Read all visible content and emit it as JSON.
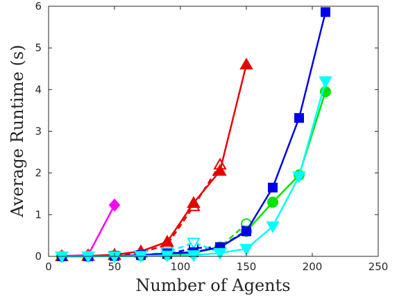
{
  "chart_data": {
    "type": "line",
    "xlabel": "Number of Agents",
    "ylabel": "Average Runtime (s)",
    "xlim": [
      0,
      250
    ],
    "ylim": [
      0,
      6
    ],
    "xticks": [
      "0",
      "50",
      "100",
      "150",
      "200",
      "250"
    ],
    "yticks": [
      "0",
      "1",
      "2",
      "3",
      "4",
      "5",
      "6"
    ],
    "xtick_values": [
      0,
      50,
      100,
      150,
      200,
      250
    ],
    "ytick_values": [
      0,
      1,
      2,
      3,
      4,
      5,
      6
    ],
    "grid": false,
    "legend": "none",
    "series": [
      {
        "color": "#ff00ff",
        "marker": "diamond",
        "filled": true,
        "dashed": false,
        "x": [
          10,
          30,
          50
        ],
        "y": [
          0.01,
          0.03,
          1.23
        ]
      },
      {
        "color": "#e60000",
        "marker": "triangle-up",
        "filled": false,
        "dashed": true,
        "x": [
          10,
          30,
          50,
          70,
          90,
          110,
          130
        ],
        "y": [
          0.0,
          0.01,
          0.03,
          0.09,
          0.28,
          1.2,
          2.2
        ]
      },
      {
        "color": "#e60000",
        "marker": "triangle-up",
        "filled": true,
        "dashed": false,
        "x": [
          10,
          30,
          50,
          70,
          90,
          110,
          130,
          150
        ],
        "y": [
          0.0,
          0.01,
          0.04,
          0.12,
          0.35,
          1.28,
          2.05,
          4.6
        ]
      },
      {
        "color": "#00e600",
        "marker": "circle",
        "filled": false,
        "dashed": true,
        "x": [
          10,
          30,
          50,
          70,
          90,
          110,
          130,
          150
        ],
        "y": [
          0.0,
          0.0,
          0.01,
          0.02,
          0.04,
          0.08,
          0.22,
          0.78
        ]
      },
      {
        "color": "#00e600",
        "marker": "circle",
        "filled": true,
        "dashed": false,
        "x": [
          10,
          30,
          50,
          70,
          90,
          110,
          130,
          150,
          170,
          190,
          210
        ],
        "y": [
          0.0,
          0.0,
          0.01,
          0.02,
          0.04,
          0.08,
          0.22,
          0.6,
          1.3,
          1.95,
          3.95
        ]
      },
      {
        "color": "#0000e6",
        "marker": "square",
        "filled": false,
        "dashed": true,
        "x": [
          10,
          30,
          50,
          70,
          90,
          110,
          130,
          150
        ],
        "y": [
          0.0,
          0.0,
          0.01,
          0.03,
          0.05,
          0.2,
          0.22,
          0.62
        ]
      },
      {
        "color": "#0000e6",
        "marker": "square",
        "filled": true,
        "dashed": false,
        "x": [
          10,
          30,
          50,
          70,
          90,
          110,
          130,
          150,
          170,
          190,
          210
        ],
        "y": [
          0.0,
          0.0,
          0.01,
          0.03,
          0.07,
          0.1,
          0.22,
          0.6,
          1.65,
          3.32,
          5.86
        ]
      },
      {
        "color": "#00ffff",
        "marker": "triangle-down",
        "filled": false,
        "dashed": true,
        "x": [
          10,
          30,
          50,
          70,
          90,
          110,
          130
        ],
        "y": [
          0.0,
          0.0,
          0.01,
          0.03,
          0.1,
          0.33,
          0.1
        ]
      },
      {
        "color": "#00ffff",
        "marker": "triangle-down",
        "filled": true,
        "dashed": false,
        "x": [
          10,
          30,
          50,
          70,
          90,
          110,
          130,
          150,
          170,
          190,
          210
        ],
        "y": [
          0.0,
          0.0,
          0.0,
          0.01,
          0.02,
          0.03,
          0.08,
          0.18,
          0.72,
          1.92,
          4.2
        ]
      }
    ]
  }
}
